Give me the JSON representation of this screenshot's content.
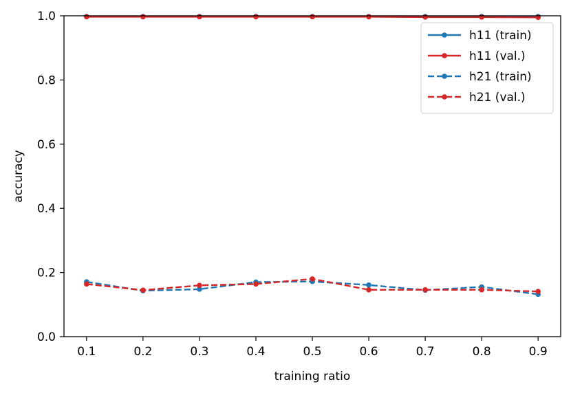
{
  "chart_data": {
    "type": "line",
    "xlabel": "training ratio",
    "ylabel": "accuracy",
    "x": [
      0.1,
      0.2,
      0.3,
      0.4,
      0.5,
      0.6,
      0.7,
      0.8,
      0.9
    ],
    "xticks": [
      "0.1",
      "0.2",
      "0.3",
      "0.4",
      "0.5",
      "0.6",
      "0.7",
      "0.8",
      "0.9"
    ],
    "yticks": [
      "0.0",
      "0.2",
      "0.4",
      "0.6",
      "0.8",
      "1.0"
    ],
    "ylim": [
      0.0,
      1.0
    ],
    "xlim": [
      0.06,
      0.94
    ],
    "grid": false,
    "legend_position": "top-right",
    "series": [
      {
        "name": "h11 (train)",
        "color": "#1f77b4",
        "linestyle": "solid",
        "values": [
          0.998,
          0.998,
          0.998,
          0.998,
          0.998,
          0.998,
          0.998,
          0.998,
          0.998
        ]
      },
      {
        "name": "h11 (val.)",
        "color": "#d62728",
        "linestyle": "solid",
        "values": [
          0.997,
          0.997,
          0.997,
          0.997,
          0.997,
          0.997,
          0.996,
          0.996,
          0.995
        ]
      },
      {
        "name": "h21 (train)",
        "color": "#1f77b4",
        "linestyle": "dashed",
        "values": [
          0.171,
          0.143,
          0.148,
          0.17,
          0.172,
          0.161,
          0.145,
          0.155,
          0.132
        ]
      },
      {
        "name": "h21 (val.)",
        "color": "#d62728",
        "linestyle": "dashed",
        "values": [
          0.164,
          0.145,
          0.16,
          0.164,
          0.18,
          0.146,
          0.146,
          0.146,
          0.141
        ]
      }
    ]
  }
}
